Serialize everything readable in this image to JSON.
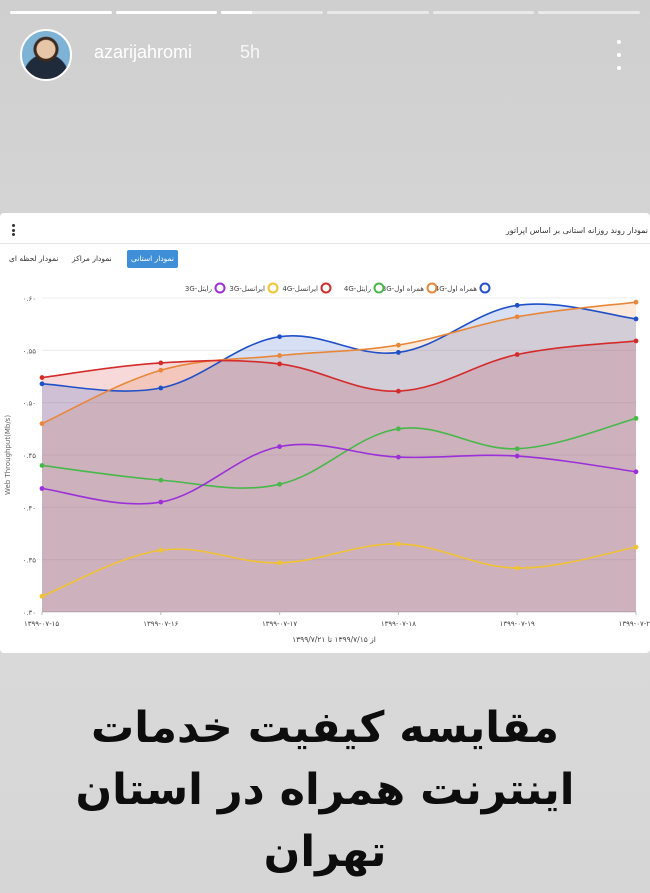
{
  "story": {
    "progress": [
      1,
      1,
      0.3,
      0,
      0,
      0
    ],
    "username": "azarijahromi",
    "time_ago": "5h"
  },
  "card": {
    "title": "نمودار روند روزانه استانی بر اساس اپراتور",
    "tabs": [
      {
        "label": "نمودار استانی",
        "active": true
      },
      {
        "label": "نمودار مراکز",
        "active": false
      },
      {
        "label": "نمودار لحظه ای",
        "active": false
      }
    ]
  },
  "chart_data": {
    "type": "line",
    "style": "smooth-area",
    "categories": [
      "۱۳۹۹-۰۷-۱۵",
      "۱۳۹۹-۰۷-۱۶",
      "۱۳۹۹-۰۷-۱۷",
      "۱۳۹۹-۰۷-۱۸",
      "۱۳۹۹-۰۷-۱۹",
      "۱۳۹۹-۰۷-۲"
    ],
    "ylabel": "Web Throughput(Mb/s)",
    "xlabel": "از ۱۳۹۹/۷/۱۵ تا ۱۳۹۹/۷/۲۱",
    "ylim": [
      0.3,
      0.6
    ],
    "yticks": [
      {
        "value": 0.3,
        "label": "۰.۳۰"
      },
      {
        "value": 0.35,
        "label": "۰.۳۵"
      },
      {
        "value": 0.4,
        "label": "۰.۴۰"
      },
      {
        "value": 0.45,
        "label": "۰.۴۵"
      },
      {
        "value": 0.5,
        "label": "۰.۵۰"
      },
      {
        "value": 0.55,
        "label": "۰.۵۵"
      },
      {
        "value": 0.6,
        "label": "۰.۶۰"
      }
    ],
    "grid": true,
    "legend_position": "top-center",
    "series": [
      {
        "name": "4G-همراه اول",
        "color": "#2050c8",
        "fill": true,
        "values": [
          0.518,
          0.514,
          0.563,
          0.548,
          0.593,
          0.58
        ]
      },
      {
        "name": "3G-همراه اول",
        "color": "#e8873a",
        "fill": true,
        "values": [
          0.48,
          0.531,
          0.545,
          0.555,
          0.582,
          0.596
        ]
      },
      {
        "name": "4G-ایرانسل",
        "color": "#d42b2b",
        "fill": true,
        "values": [
          0.524,
          0.538,
          0.537,
          0.511,
          0.546,
          0.559
        ]
      },
      {
        "name": "3G-ایرانسل",
        "color": "#f1c232",
        "fill": false,
        "values": [
          0.315,
          0.359,
          0.347,
          0.365,
          0.342,
          0.362
        ]
      },
      {
        "name": "4G-رایتل",
        "color": "#49b84a",
        "fill": false,
        "values": [
          0.44,
          0.426,
          0.422,
          0.475,
          0.456,
          0.485
        ]
      },
      {
        "name": "3G-رایتل",
        "color": "#9b30d9",
        "fill": false,
        "values": [
          0.418,
          0.405,
          0.458,
          0.448,
          0.449,
          0.434
        ]
      }
    ],
    "legend_order": [
      "4G-همراه اول",
      "3G-همراه اول",
      "4G-رایتل",
      "4G-ایرانسل",
      "3G-ایرانسل",
      "3G-رایتل"
    ]
  },
  "headline": {
    "line1": "مقایسه کیفیت خدمات",
    "line2": "اینترنت همراه در استان",
    "line3": "تهران"
  }
}
